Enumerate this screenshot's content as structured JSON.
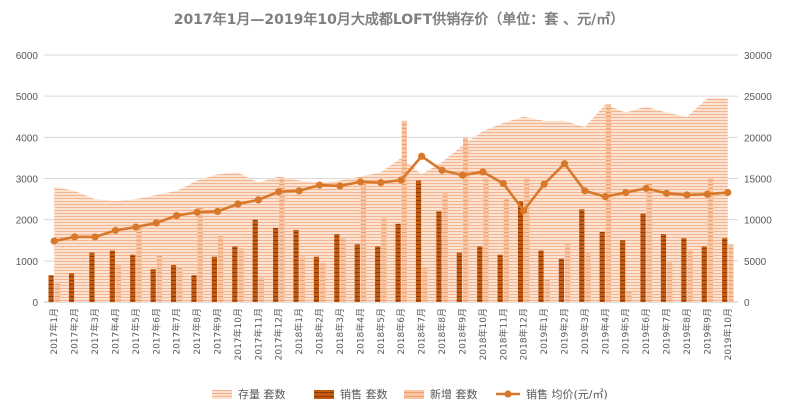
{
  "chart_data": {
    "type": "bar",
    "title": "2017年1月—2019年10月大成都LOFT供销存价（单位：套 、元/㎡）",
    "categories": [
      "2017年1月",
      "2017年2月",
      "2017年3月",
      "2017年4月",
      "2017年5月",
      "2017年6月",
      "2017年7月",
      "2017年8月",
      "2017年9月",
      "2017年10月",
      "2017年11月",
      "2017年12月",
      "2018年1月",
      "2018年2月",
      "2018年3月",
      "2018年4月",
      "2018年5月",
      "2018年6月",
      "2018年7月",
      "2018年8月",
      "2018年9月",
      "2018年10月",
      "2018年11月",
      "2018年12月",
      "2019年1月",
      "2019年2月",
      "2019年3月",
      "2019年4月",
      "2019年5月",
      "2019年6月",
      "2019年7月",
      "2019年8月",
      "2019年9月",
      "2019年10月"
    ],
    "y_left": {
      "ticks": [
        "0",
        "1000",
        "2000",
        "3000",
        "4000",
        "5000",
        "6000"
      ],
      "range": [
        0,
        6000
      ]
    },
    "y_right": {
      "ticks": [
        "0",
        "5000",
        "10000",
        "15000",
        "20000",
        "25000",
        "30000"
      ],
      "range": [
        0,
        30000
      ]
    },
    "grid": true,
    "legend_position": "bottom",
    "series": [
      {
        "name": "存量 套数",
        "kind": "area",
        "axis": "left",
        "color": "#f8cbad",
        "values": [
          2800,
          2700,
          2500,
          2450,
          2500,
          2600,
          2700,
          2950,
          3100,
          3150,
          2900,
          3050,
          2950,
          2900,
          2950,
          3050,
          3150,
          3500,
          3100,
          3400,
          3800,
          4150,
          4350,
          4500,
          4400,
          4400,
          4250,
          4800,
          4600,
          4750,
          4600,
          4500,
          4950,
          4950
        ]
      },
      {
        "name": "销售 套数",
        "kind": "bar",
        "axis": "left",
        "color": "#c55a11",
        "values": [
          650,
          700,
          1200,
          1250,
          1150,
          800,
          900,
          650,
          1100,
          1350,
          2000,
          1800,
          1750,
          1100,
          1650,
          1400,
          1350,
          1900,
          2950,
          2200,
          1200,
          1350,
          1150,
          2450,
          1250,
          1050,
          2250,
          1700,
          1500,
          2150,
          1650,
          1550,
          1350,
          1550
        ]
      },
      {
        "name": "新增 套数",
        "kind": "bar",
        "axis": "left",
        "color": "#f4b183",
        "values": [
          450,
          0,
          0,
          900,
          1800,
          1150,
          850,
          2300,
          1600,
          1300,
          600,
          3000,
          1100,
          950,
          1550,
          2900,
          2050,
          4400,
          850,
          2650,
          4000,
          3000,
          2500,
          3000,
          550,
          1400,
          1200,
          4800,
          250,
          2900,
          1000,
          1250,
          3000,
          1400
        ]
      },
      {
        "name": "销售 均价(元/㎡)",
        "kind": "line",
        "axis": "right",
        "color": "#d8782a",
        "values": [
          7400,
          7900,
          7900,
          8700,
          9100,
          9600,
          10500,
          10900,
          11000,
          11900,
          12400,
          13400,
          13500,
          14200,
          14100,
          14600,
          14500,
          14800,
          17700,
          16000,
          15400,
          15800,
          14400,
          11100,
          14300,
          16800,
          13500,
          12800,
          13300,
          13800,
          13200,
          13000,
          13100,
          13300
        ]
      }
    ]
  }
}
